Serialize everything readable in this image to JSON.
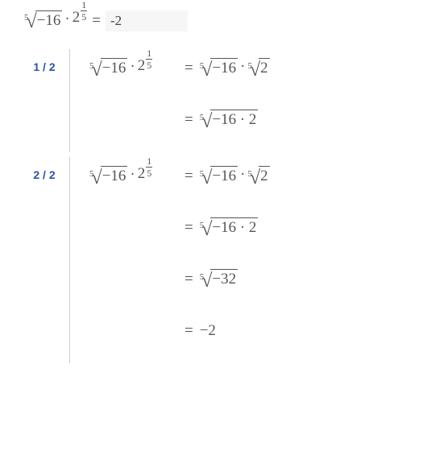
{
  "top": {
    "root_index": "5",
    "radicand": "−16",
    "times_base": "2",
    "exp_num": "1",
    "exp_den": "5",
    "eq": "=",
    "answer_value": "-2"
  },
  "common": {
    "dot": "·",
    "eq": "="
  },
  "steps": [
    {
      "label": "1 / 2",
      "lines": [
        {
          "lhs": {
            "root_index": "5",
            "radicand": "−16",
            "times_base": "2",
            "exp_num": "1",
            "exp_den": "5"
          },
          "rhs_type": "two_roots",
          "rhs": {
            "r1_index": "5",
            "r1_rad": "−16",
            "r2_index": "5",
            "r2_rad": "2"
          }
        },
        {
          "lhs": null,
          "rhs_type": "one_root",
          "rhs": {
            "index": "5",
            "rad": "−16 · 2"
          }
        }
      ]
    },
    {
      "label": "2 / 2",
      "lines": [
        {
          "lhs": {
            "root_index": "5",
            "radicand": "−16",
            "times_base": "2",
            "exp_num": "1",
            "exp_den": "5"
          },
          "rhs_type": "two_roots",
          "rhs": {
            "r1_index": "5",
            "r1_rad": "−16",
            "r2_index": "5",
            "r2_rad": "2"
          }
        },
        {
          "lhs": null,
          "rhs_type": "one_root",
          "rhs": {
            "index": "5",
            "rad": "−16 · 2"
          }
        },
        {
          "lhs": null,
          "rhs_type": "one_root",
          "rhs": {
            "index": "5",
            "rad": "−32"
          }
        },
        {
          "lhs": null,
          "rhs_type": "plain",
          "rhs": {
            "text": "−2"
          }
        }
      ]
    }
  ]
}
